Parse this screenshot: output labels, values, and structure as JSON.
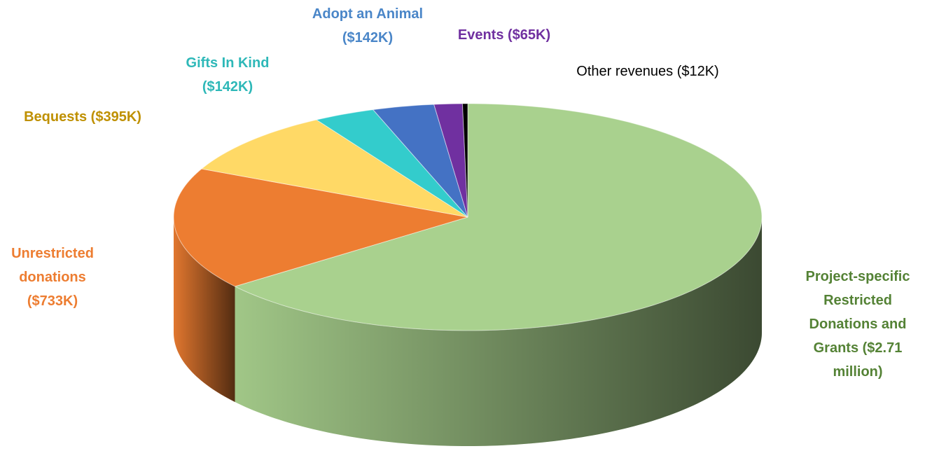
{
  "chart_data": {
    "type": "pie",
    "categories": [
      "Project-specific Restricted Donations and Grants ($2.71 million)",
      "Unrestricted donations ($733K)",
      "Bequests ($395K)",
      "Gifts In Kind ($142K)",
      "Adopt an Animal ($142K)",
      "Events ($65K)",
      "Other revenues ($12K)"
    ],
    "values": [
      2710000,
      733000,
      395000,
      142000,
      142000,
      65000,
      12000
    ],
    "colors": [
      "#a9d18e",
      "#ed7d31",
      "#ffd966",
      "#33cccc",
      "#4472c4",
      "#7030a0",
      "#000000"
    ],
    "label_colors": [
      "#548235",
      "#ed7d31",
      "#bf9000",
      "#2eb8b8",
      "#4a86c8",
      "#7030a0",
      "#000000"
    ]
  }
}
